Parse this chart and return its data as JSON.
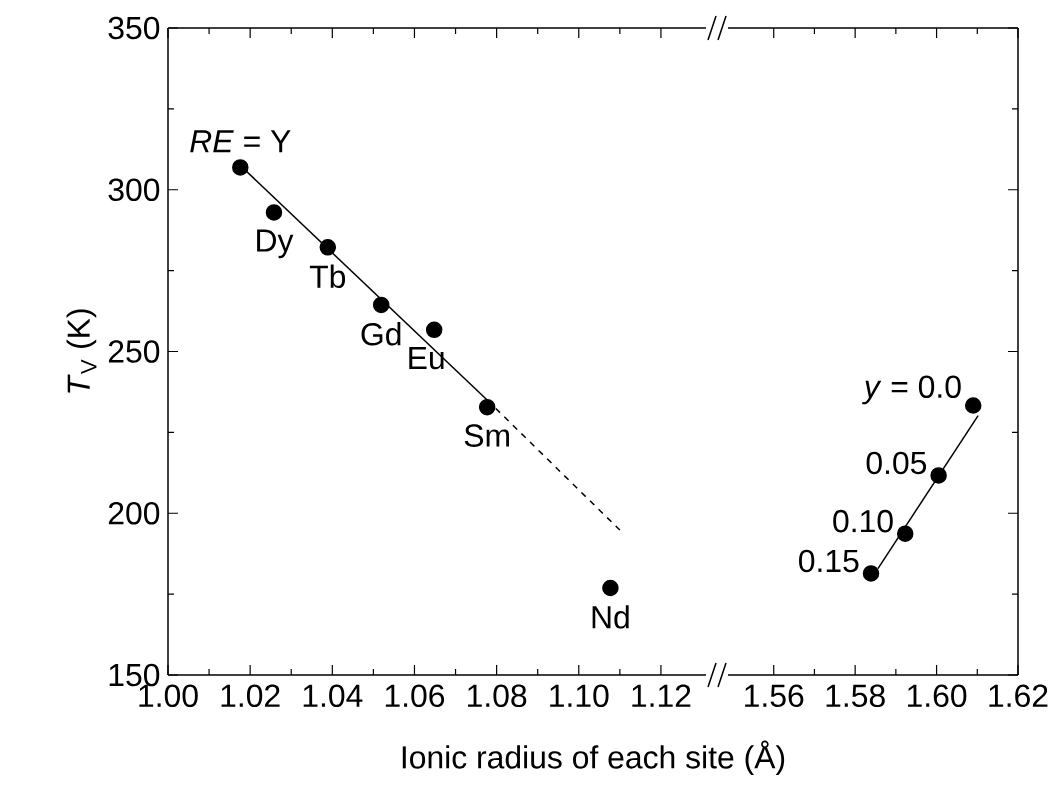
{
  "chart_data": [
    {
      "type": "scatter",
      "xlabel": "Ionic radius of each site (Å)",
      "ylabel": "*T*$_{V}$ (K)",
      "xlim": [
        1.0,
        1.13
      ],
      "xticks": [
        {
          "value": 1.0,
          "label": "1.00"
        },
        1.02,
        1.04,
        1.06,
        1.08,
        {
          "value": 1.1,
          "label": "1.10"
        },
        1.12
      ],
      "ylim": [
        150,
        350
      ],
      "yticks": [
        150,
        200,
        250,
        300,
        350
      ],
      "marker": "circle",
      "series": [
        {
          "color": "#000000",
          "x": [
            1.0176,
            1.0258,
            1.0389,
            1.0519,
            1.0648,
            1.0777,
            1.1077
          ],
          "values": [
            306.9,
            293.0,
            282.2,
            264.4,
            256.7,
            232.8,
            176.9
          ]
        },
        {
          "type": "line",
          "color": "#000000",
          "marker": "none",
          "line_style": "solid",
          "x": [
            1.0176,
            1.0777
          ],
          "values": [
            307.5,
            235.0
          ]
        },
        {
          "type": "line",
          "color": "#000000",
          "marker": "none",
          "line_style": "dashed",
          "x": [
            1.0777,
            1.11
          ],
          "values": [
            235.0,
            194.8
          ]
        }
      ],
      "annotations": [
        {
          "text": "*RE* = Y",
          "x": 1.0176,
          "y": 306.9
        },
        {
          "text": "Dy",
          "x": 1.0258,
          "y": 293.0
        },
        {
          "text": "Tb",
          "x": 1.0389,
          "y": 282.2
        },
        {
          "text": "Gd",
          "x": 1.0519,
          "y": 264.4
        },
        {
          "text": "Eu",
          "x": 1.0648,
          "y": 256.7
        },
        {
          "text": "Sm",
          "x": 1.0777,
          "y": 232.8
        },
        {
          "text": "Nd",
          "x": 1.1077,
          "y": 176.9
        }
      ]
    },
    {
      "type": "scatter",
      "xlim": [
        1.55,
        1.62
      ],
      "xticks": [
        1.56,
        1.58,
        {
          "value": 1.6,
          "label": "1.60"
        },
        1.62
      ],
      "ylim": [
        150,
        350
      ],
      "yticks": [
        150,
        200,
        250,
        300,
        350
      ],
      "tick_labels": "x",
      "marker": "circle",
      "series": [
        {
          "color": "#000000",
          "x": [
            1.609,
            1.6005,
            1.5923,
            1.5839
          ],
          "values": [
            233.3,
            211.7,
            193.7,
            181.4
          ]
        },
        {
          "type": "line",
          "color": "#000000",
          "marker": "none",
          "line_style": "solid",
          "x": [
            1.5856,
            1.6102
          ],
          "values": [
            182.9,
            230.2
          ]
        }
      ],
      "annotations": [
        {
          "text": "*y* = 0.0",
          "x": 1.609,
          "y": 233.3
        },
        {
          "text": "0.05",
          "x": 1.6005,
          "y": 211.7
        },
        {
          "text": "0.10",
          "x": 1.5923,
          "y": 193.7
        },
        {
          "text": "0.15",
          "x": 1.5839,
          "y": 181.4
        }
      ]
    }
  ]
}
